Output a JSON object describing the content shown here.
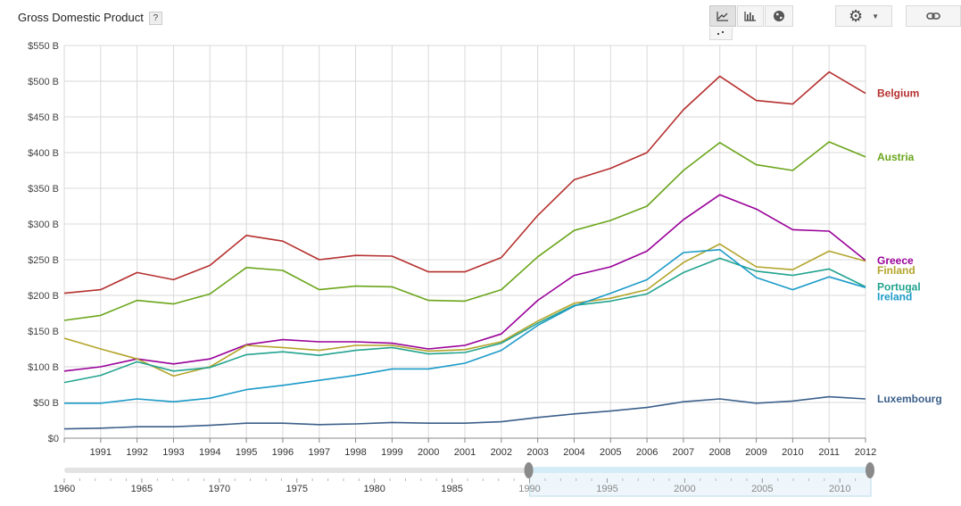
{
  "header": {
    "title": "Gross Domestic Product",
    "help_label": "?"
  },
  "toolbar": {
    "line_chart_icon": "line-chart-icon",
    "bar_chart_icon": "bar-chart-icon",
    "map_icon": "globe-icon",
    "settings_icon": "gear-icon",
    "link_icon": "link-icon"
  },
  "chart_data": {
    "type": "line",
    "title": "Gross Domestic Product",
    "xlabel": "",
    "ylabel": "",
    "x": [
      1990,
      1991,
      1992,
      1993,
      1994,
      1995,
      1996,
      1997,
      1998,
      1999,
      2000,
      2001,
      2002,
      2003,
      2004,
      2005,
      2006,
      2007,
      2008,
      2009,
      2010,
      2011,
      2012
    ],
    "ylim": [
      0,
      550
    ],
    "yticks": [
      0,
      50,
      100,
      150,
      200,
      250,
      300,
      350,
      400,
      450,
      500,
      550
    ],
    "ytick_labels": [
      "$0",
      "$50 B",
      "$100 B",
      "$150 B",
      "$200 B",
      "$250 B",
      "$300 B",
      "$350 B",
      "$400 B",
      "$450 B",
      "$500 B",
      "$550 B"
    ],
    "xtick_labels": [
      "1991",
      "1992",
      "1993",
      "1994",
      "1995",
      "1996",
      "1997",
      "1998",
      "1999",
      "2000",
      "2001",
      "2002",
      "2003",
      "2004",
      "2005",
      "2006",
      "2007",
      "2008",
      "2009",
      "2010",
      "2011",
      "2012"
    ],
    "grid": true,
    "legend_placement": "right",
    "series": [
      {
        "name": "Belgium",
        "color": "#b5302f",
        "values": [
          203,
          208,
          232,
          222,
          242,
          284,
          276,
          250,
          256,
          255,
          233,
          233,
          253,
          312,
          362,
          378,
          400,
          460,
          507,
          473,
          468,
          513,
          483
        ]
      },
      {
        "name": "Austria",
        "color": "#6aa51a",
        "values": [
          165,
          172,
          193,
          188,
          202,
          239,
          235,
          208,
          213,
          212,
          193,
          192,
          208,
          254,
          291,
          305,
          325,
          375,
          414,
          383,
          375,
          415,
          394
        ]
      },
      {
        "name": "Greece",
        "color": "#990099",
        "values": [
          94,
          100,
          111,
          104,
          111,
          131,
          138,
          135,
          135,
          133,
          125,
          130,
          146,
          193,
          228,
          240,
          262,
          306,
          341,
          321,
          292,
          290,
          249
        ]
      },
      {
        "name": "Finland",
        "color": "#b3a42a",
        "values": [
          140,
          125,
          111,
          87,
          100,
          130,
          127,
          123,
          130,
          130,
          122,
          124,
          135,
          164,
          189,
          196,
          208,
          246,
          272,
          240,
          236,
          262,
          248
        ]
      },
      {
        "name": "Portugal",
        "color": "#22a38f",
        "values": [
          78,
          88,
          107,
          94,
          99,
          117,
          121,
          116,
          123,
          127,
          118,
          120,
          133,
          161,
          186,
          192,
          202,
          232,
          252,
          234,
          228,
          237,
          212
        ]
      },
      {
        "name": "Ireland",
        "color": "#1b9ac8",
        "values": [
          49,
          49,
          55,
          51,
          56,
          68,
          74,
          81,
          88,
          97,
          97,
          105,
          123,
          158,
          185,
          203,
          222,
          260,
          264,
          225,
          208,
          226,
          211
        ]
      },
      {
        "name": "Luxembourg",
        "color": "#3b5f8a",
        "values": [
          13,
          14,
          16,
          16,
          18,
          21,
          21,
          19,
          20,
          22,
          21,
          21,
          23,
          29,
          34,
          38,
          43,
          51,
          55,
          49,
          52,
          58,
          55
        ]
      }
    ],
    "range_selector": {
      "labels": [
        "1960",
        "1965",
        "1970",
        "1975",
        "1980",
        "1985",
        "1990",
        "1995",
        "2000",
        "2005",
        "2010"
      ],
      "start": 1960,
      "end": 2012,
      "selected": [
        1990,
        2012
      ]
    }
  }
}
